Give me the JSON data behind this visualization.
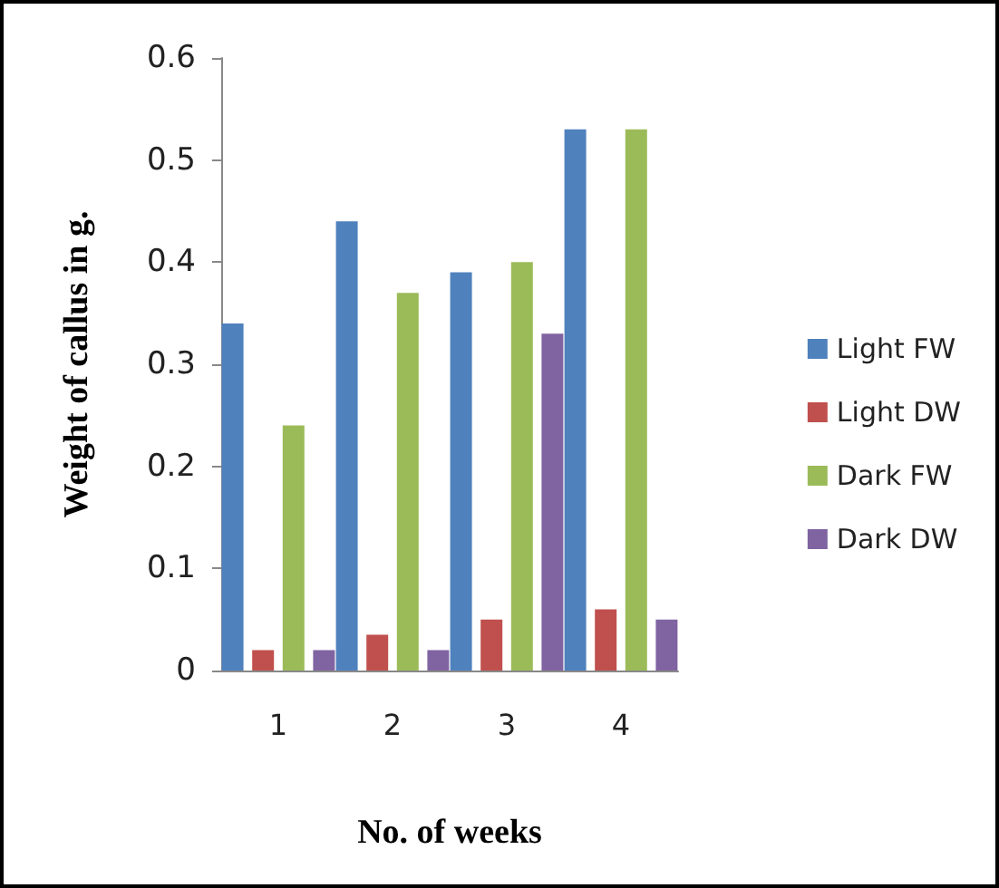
{
  "chart_data": {
    "type": "bar",
    "xlabel": "No. of weeks",
    "ylabel": "Weight of callus in g.",
    "categories": [
      "1",
      "2",
      "3",
      "4"
    ],
    "series": [
      {
        "name": "Light FW",
        "color": "#4f81bd",
        "values": [
          0.34,
          0.44,
          0.39,
          0.53
        ]
      },
      {
        "name": "Light DW",
        "color": "#c0504d",
        "values": [
          0.02,
          0.035,
          0.05,
          0.06
        ]
      },
      {
        "name": "Dark FW",
        "color": "#9bbb59",
        "values": [
          0.24,
          0.37,
          0.4,
          0.53
        ]
      },
      {
        "name": "Dark DW",
        "color": "#8064a2",
        "values": [
          0.02,
          0.02,
          0.33,
          0.05
        ]
      }
    ],
    "ylim": [
      0,
      0.6
    ],
    "yticks": [
      0,
      0.1,
      0.2,
      0.3,
      0.4,
      0.5,
      0.6
    ],
    "grid": false,
    "legend": "right"
  }
}
